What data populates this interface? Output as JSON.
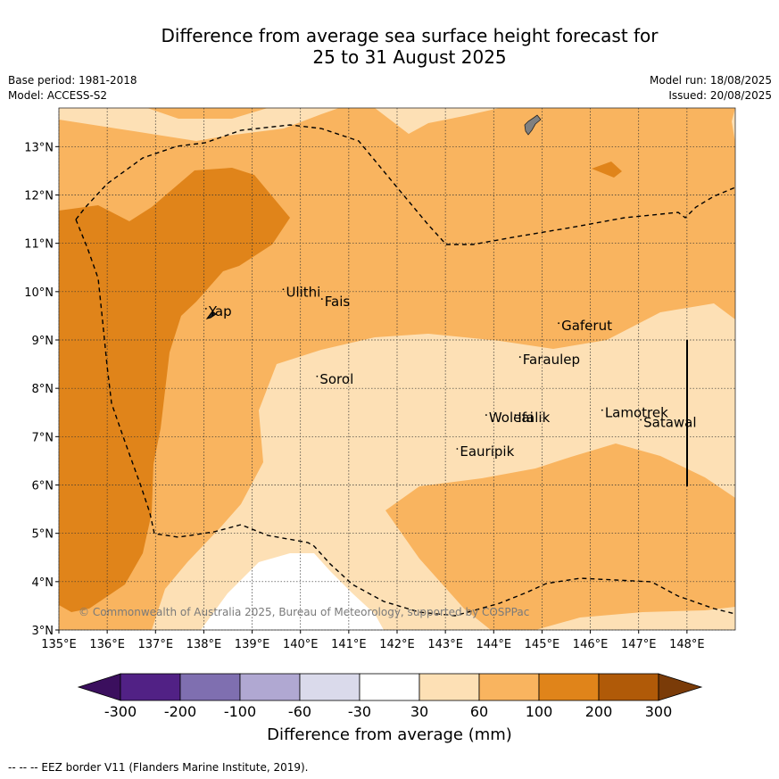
{
  "title": {
    "line1": "Difference from average sea surface height forecast for",
    "line2": "25 to 31 August 2025"
  },
  "meta": {
    "base_period": "Base period: 1981-2018",
    "model": "Model: ACCESS-S2",
    "model_run": "Model run: 18/08/2025",
    "issued": "Issued: 20/08/2025"
  },
  "map": {
    "lon_range": [
      135,
      149
    ],
    "lat_range": [
      3,
      13.8
    ],
    "x_ticks": [
      "135°E",
      "136°E",
      "137°E",
      "138°E",
      "139°E",
      "140°E",
      "141°E",
      "142°E",
      "143°E",
      "144°E",
      "145°E",
      "146°E",
      "147°E",
      "148°E"
    ],
    "y_ticks": [
      "3°N",
      "4°N",
      "5°N",
      "6°N",
      "7°N",
      "8°N",
      "9°N",
      "10°N",
      "11°N",
      "12°N",
      "13°N"
    ],
    "places": [
      {
        "name": "Yap",
        "lon": 138.1,
        "lat": 9.5
      },
      {
        "name": "Ulithi",
        "lon": 139.7,
        "lat": 9.9
      },
      {
        "name": "Fais",
        "lon": 140.5,
        "lat": 9.7
      },
      {
        "name": "Sorol",
        "lon": 140.4,
        "lat": 8.1
      },
      {
        "name": "Gaferut",
        "lon": 145.4,
        "lat": 9.2
      },
      {
        "name": "Faraulep",
        "lon": 144.6,
        "lat": 8.5
      },
      {
        "name": "Woleai",
        "lon": 143.9,
        "lat": 7.3
      },
      {
        "name": "Ifalik",
        "lon": 144.5,
        "lat": 7.3
      },
      {
        "name": "Lamotrek",
        "lon": 146.3,
        "lat": 7.4
      },
      {
        "name": "Satawal",
        "lon": 147.1,
        "lat": 7.2
      },
      {
        "name": "Eauripik",
        "lon": 143.3,
        "lat": 6.6
      }
    ],
    "copyright": "© Commonwealth of Australia 2025, Bureau of Meteorology, supported by COSPPac"
  },
  "colorbar": {
    "labels": [
      "-300",
      "-200",
      "-100",
      "-60",
      "-30",
      "30",
      "60",
      "100",
      "200",
      "300"
    ],
    "colors": [
      "#3b0f5e",
      "#512185",
      "#7f6fb0",
      "#b0a8d2",
      "#dadaeb",
      "#ffffff",
      "#fde0b5",
      "#f9b45f",
      "#e0841a",
      "#b05a08",
      "#7a3b08"
    ],
    "title": "Difference from average (mm)"
  },
  "footer": "--  --  -- EEZ border V11 (Flanders Marine Institute, 2019)."
}
